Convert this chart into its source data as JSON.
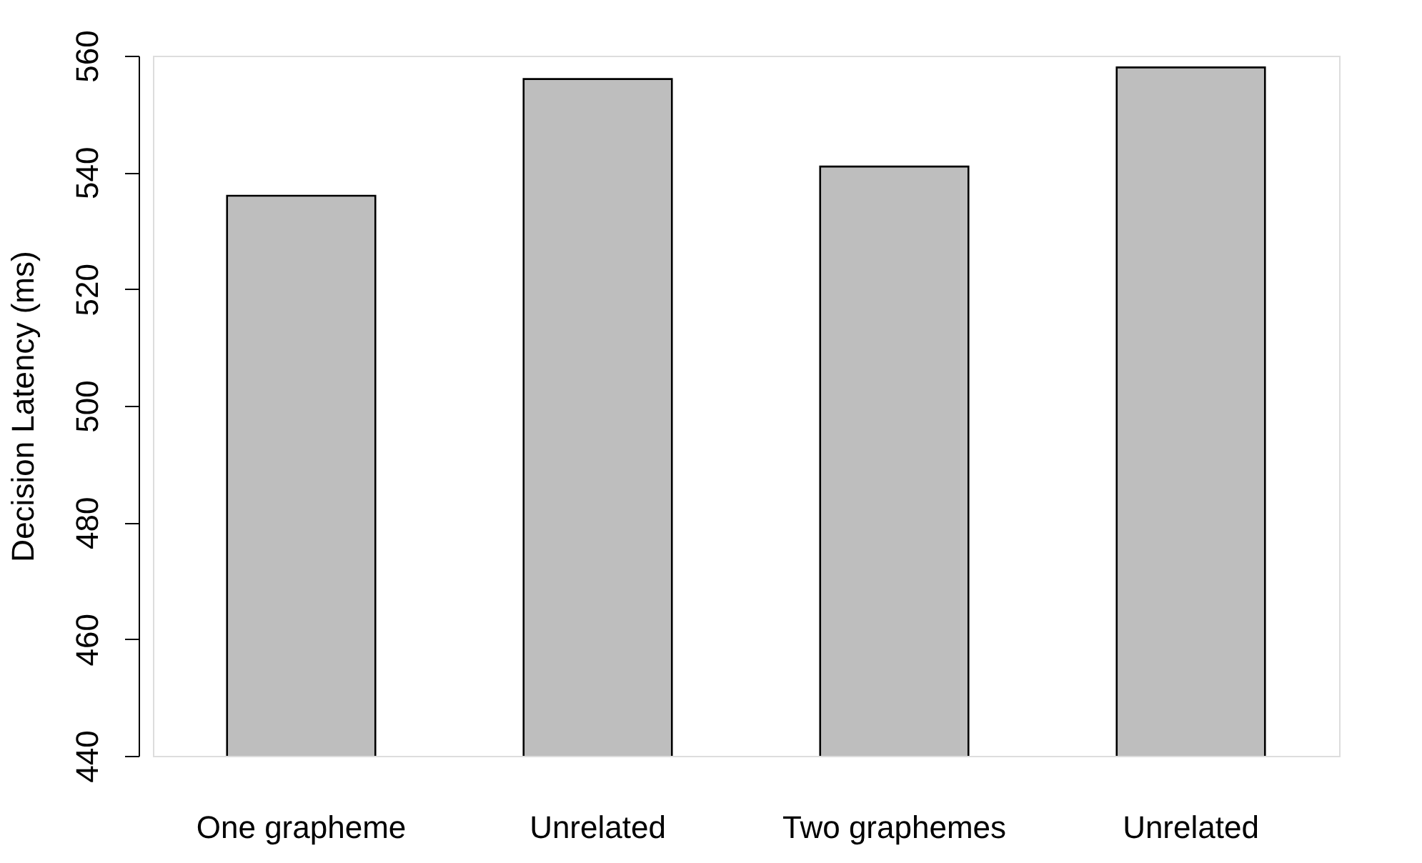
{
  "chart_data": {
    "type": "bar",
    "ylabel": "Decision Latency (ms)",
    "categories": [
      "One grapheme",
      "Unrelated",
      "Two graphemes",
      "Unrelated"
    ],
    "values": [
      536,
      556,
      541,
      558
    ],
    "color": "#bebebe",
    "ylim": [
      440,
      560
    ],
    "yticks": [
      440,
      460,
      480,
      500,
      520,
      540,
      560
    ],
    "grid": false
  }
}
